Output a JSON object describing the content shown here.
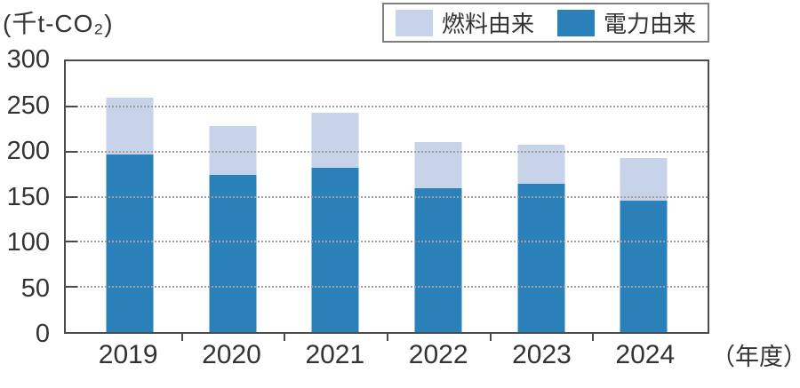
{
  "unit_label": "(千t-CO₂)",
  "axis_suffix": "（年度）",
  "chart_data": {
    "type": "bar",
    "stacked": true,
    "title": "",
    "ylabel": "(千t-CO₂)",
    "xlabel": "（年度）",
    "categories": [
      "2019",
      "2020",
      "2021",
      "2022",
      "2023",
      "2024"
    ],
    "series": [
      {
        "name": "電力由来",
        "color": "#2A80B8",
        "values": [
          197,
          174,
          182,
          159,
          164,
          146
        ]
      },
      {
        "name": "燃料由来",
        "color": "#C6D3E9",
        "values": [
          63,
          54,
          61,
          52,
          44,
          47
        ]
      }
    ],
    "totals": [
      260,
      228,
      243,
      211,
      208,
      193
    ],
    "ylim": [
      0,
      300
    ],
    "yticks": [
      0,
      50,
      100,
      150,
      200,
      250,
      300
    ],
    "grid": "dotted-horizontal",
    "legend": [
      {
        "label": "燃料由来",
        "color": "#C6D3E9"
      },
      {
        "label": "電力由来",
        "color": "#2A80B8"
      }
    ],
    "legend_position": "top-right"
  },
  "colors": {
    "axis": "#4b4b4b",
    "grid": "#a0a0a0",
    "text": "#333333",
    "legend_border": "#7f7f7f",
    "background": "#ffffff",
    "bar_electricity": "#2A80B8",
    "bar_fuel": "#C6D3E9"
  }
}
